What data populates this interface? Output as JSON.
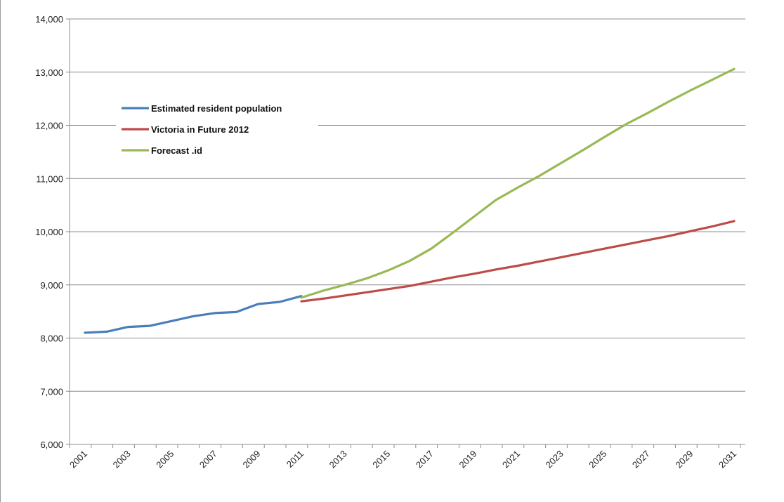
{
  "chart_data": {
    "type": "line",
    "title": "",
    "xlabel": "",
    "ylabel": "",
    "ylim": [
      6000,
      14000
    ],
    "y_ticks": [
      6000,
      7000,
      8000,
      9000,
      10000,
      11000,
      12000,
      13000,
      14000
    ],
    "y_tick_labels": [
      "6,000",
      "7,000",
      "8,000",
      "9,000",
      "10,000",
      "11,000",
      "12,000",
      "13,000",
      "14,000"
    ],
    "x_tick_labels": [
      "2001",
      "2003",
      "2005",
      "2007",
      "2009",
      "2011",
      "2013",
      "2015",
      "2017",
      "2019",
      "2021",
      "2023",
      "2025",
      "2027",
      "2029",
      "2031"
    ],
    "grid": true,
    "legend_position": "upper-left, inside plot",
    "series": [
      {
        "name": "Estimated resident population",
        "color": "#4a7ebb",
        "x": [
          2001,
          2002,
          2003,
          2004,
          2005,
          2006,
          2007,
          2008,
          2009,
          2010,
          2011
        ],
        "values": [
          8100,
          8120,
          8210,
          8230,
          8320,
          8410,
          8470,
          8490,
          8640,
          8680,
          8790
        ]
      },
      {
        "name": "Victoria in Future 2012",
        "color": "#be4b48",
        "x": [
          2011,
          2012,
          2013,
          2014,
          2015,
          2016,
          2017,
          2018,
          2019,
          2020,
          2021,
          2022,
          2023,
          2024,
          2025,
          2026,
          2027,
          2028,
          2029,
          2030,
          2031
        ],
        "values": [
          8690,
          8740,
          8800,
          8860,
          8920,
          8980,
          9060,
          9140,
          9210,
          9290,
          9360,
          9440,
          9520,
          9600,
          9680,
          9760,
          9840,
          9920,
          10010,
          10100,
          10200
        ]
      },
      {
        "name": "Forecast .id",
        "color": "#98b954",
        "x": [
          2011,
          2012,
          2013,
          2014,
          2015,
          2016,
          2017,
          2018,
          2019,
          2020,
          2021,
          2022,
          2023,
          2024,
          2025,
          2026,
          2027,
          2028,
          2029,
          2030,
          2031
        ],
        "values": [
          8760,
          8890,
          9000,
          9120,
          9270,
          9450,
          9680,
          9980,
          10290,
          10600,
          10830,
          11050,
          11290,
          11530,
          11780,
          12020,
          12230,
          12450,
          12660,
          12860,
          13060
        ]
      }
    ]
  }
}
